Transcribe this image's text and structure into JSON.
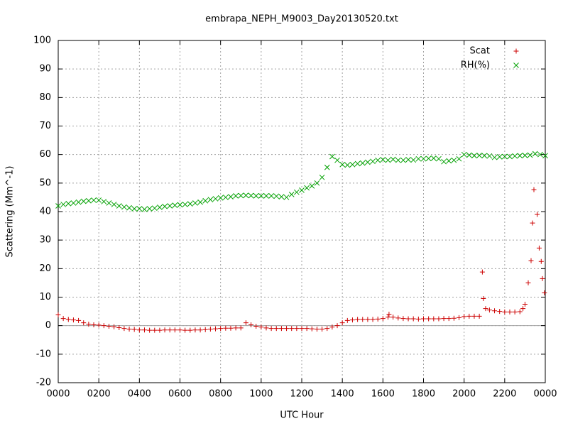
{
  "chart_data": {
    "type": "scatter",
    "title": "embrapa_NEPH_M9003_Day20130520.txt",
    "x_label": "UTC Hour",
    "y_label": "Scattering (Mm^-1)",
    "xlim": [
      0,
      24
    ],
    "xticks": [
      {
        "value": 0,
        "label": "0000"
      },
      {
        "value": 2,
        "label": "0200"
      },
      {
        "value": 4,
        "label": "0400"
      },
      {
        "value": 6,
        "label": "0600"
      },
      {
        "value": 8,
        "label": "0800"
      },
      {
        "value": 10,
        "label": "1000"
      },
      {
        "value": 12,
        "label": "1200"
      },
      {
        "value": 14,
        "label": "1400"
      },
      {
        "value": 16,
        "label": "1600"
      },
      {
        "value": 18,
        "label": "1800"
      },
      {
        "value": 20,
        "label": "2000"
      },
      {
        "value": 22,
        "label": "2200"
      },
      {
        "value": 24,
        "label": "0000"
      }
    ],
    "ylim": [
      -20,
      100
    ],
    "yticks": [
      -20,
      -10,
      0,
      10,
      20,
      30,
      40,
      50,
      60,
      70,
      80,
      90,
      100
    ],
    "grid": true,
    "legend": "top-right",
    "series": [
      {
        "name": "Scat",
        "color": "#cc0000",
        "marker": "plus",
        "x": [
          0,
          0.25,
          0.5,
          0.75,
          1,
          1.25,
          1.5,
          1.75,
          2,
          2.25,
          2.5,
          2.75,
          3,
          3.25,
          3.5,
          3.75,
          4,
          4.25,
          4.5,
          4.75,
          5,
          5.25,
          5.5,
          5.75,
          6,
          6.25,
          6.5,
          6.75,
          7,
          7.25,
          7.5,
          7.75,
          8,
          8.25,
          8.5,
          8.75,
          9,
          9.25,
          9.5,
          9.75,
          10,
          10.25,
          10.5,
          10.75,
          11,
          11.25,
          11.5,
          11.75,
          12,
          12.25,
          12.5,
          12.75,
          13,
          13.25,
          13.5,
          13.75,
          14,
          14.25,
          14.5,
          14.75,
          15,
          15.25,
          15.5,
          15.75,
          16,
          16.25,
          16.3,
          16.5,
          16.75,
          17,
          17.25,
          17.5,
          17.75,
          18,
          18.25,
          18.5,
          18.75,
          19,
          19.25,
          19.5,
          19.75,
          20,
          20.25,
          20.5,
          20.75,
          20.9,
          20.95,
          21.06,
          21.25,
          21.5,
          21.75,
          22,
          22.25,
          22.5,
          22.75,
          22.9,
          23,
          23.16,
          23.3,
          23.37,
          23.44,
          23.6,
          23.7,
          23.8,
          23.86,
          23.96
        ],
        "values": [
          3.8,
          2.5,
          2.2,
          2,
          1.8,
          1,
          0.5,
          0.3,
          0.2,
          0,
          -0.2,
          -0.4,
          -0.7,
          -1,
          -1.2,
          -1.3,
          -1.5,
          -1.5,
          -1.6,
          -1.6,
          -1.6,
          -1.5,
          -1.5,
          -1.5,
          -1.5,
          -1.6,
          -1.6,
          -1.5,
          -1.5,
          -1.4,
          -1.2,
          -1.1,
          -1,
          -0.9,
          -0.9,
          -0.8,
          -0.8,
          1,
          0.3,
          -0.2,
          -0.5,
          -0.8,
          -1,
          -1,
          -1,
          -1,
          -1,
          -1,
          -1,
          -1,
          -1.1,
          -1.2,
          -1.2,
          -1,
          -0.5,
          0,
          1,
          1.8,
          2,
          2.2,
          2.2,
          2.2,
          2.2,
          2.3,
          2.5,
          3,
          4,
          3,
          2.7,
          2.5,
          2.4,
          2.4,
          2.3,
          2.4,
          2.4,
          2.4,
          2.4,
          2.5,
          2.5,
          2.6,
          2.8,
          3.2,
          3.3,
          3.3,
          3.3,
          18.8,
          9.5,
          6,
          5.5,
          5.2,
          5,
          4.8,
          4.8,
          4.8,
          4.9,
          6,
          7.5,
          15,
          22.8,
          36,
          47.7,
          39,
          27.2,
          22.5,
          16.5,
          11.5
        ]
      },
      {
        "name": "RH(%)",
        "color": "#00a000",
        "marker": "cross",
        "x": [
          0,
          0.25,
          0.5,
          0.75,
          1,
          1.25,
          1.5,
          1.75,
          2,
          2.25,
          2.5,
          2.75,
          3,
          3.25,
          3.5,
          3.75,
          4,
          4.25,
          4.5,
          4.75,
          5,
          5.25,
          5.5,
          5.75,
          6,
          6.25,
          6.5,
          6.75,
          7,
          7.25,
          7.5,
          7.75,
          8,
          8.25,
          8.5,
          8.75,
          9,
          9.25,
          9.5,
          9.75,
          10,
          10.25,
          10.5,
          10.75,
          11,
          11.25,
          11.5,
          11.75,
          12,
          12.25,
          12.5,
          12.75,
          13,
          13.25,
          13.5,
          13.75,
          14,
          14.25,
          14.5,
          14.75,
          15,
          15.25,
          15.5,
          15.75,
          16,
          16.25,
          16.5,
          16.75,
          17,
          17.25,
          17.5,
          17.75,
          18,
          18.25,
          18.5,
          18.75,
          19,
          19.25,
          19.5,
          19.75,
          20,
          20.25,
          20.5,
          20.75,
          21,
          21.25,
          21.5,
          21.75,
          22,
          22.25,
          22.5,
          22.75,
          23,
          23.25,
          23.5,
          23.75,
          24
        ],
        "values": [
          42,
          42.5,
          42.8,
          43,
          43.3,
          43.6,
          43.8,
          44,
          44,
          43.5,
          43,
          42.5,
          42,
          41.6,
          41.3,
          41,
          41,
          40.8,
          41,
          41.2,
          41.5,
          41.8,
          42,
          42.2,
          42.4,
          42.5,
          42.7,
          43,
          43.3,
          43.8,
          44.2,
          44.5,
          44.8,
          45,
          45.2,
          45.5,
          45.6,
          45.7,
          45.6,
          45.5,
          45.5,
          45.5,
          45.5,
          45.4,
          45.2,
          45,
          46,
          46.8,
          47.5,
          48.3,
          49,
          50,
          52,
          55.5,
          59.3,
          58,
          56.5,
          56.3,
          56.5,
          56.8,
          57,
          57.3,
          57.6,
          58,
          58.2,
          58,
          58.3,
          58,
          58,
          58.2,
          58.1,
          58.5,
          58.5,
          58.6,
          58.7,
          58.5,
          57.5,
          57.8,
          58,
          58.5,
          60,
          59.8,
          59.6,
          59.7,
          59.6,
          59.5,
          59,
          59.2,
          59.3,
          59.3,
          59.5,
          59.6,
          59.7,
          59.8,
          60.3,
          60,
          59.6
        ]
      }
    ]
  }
}
